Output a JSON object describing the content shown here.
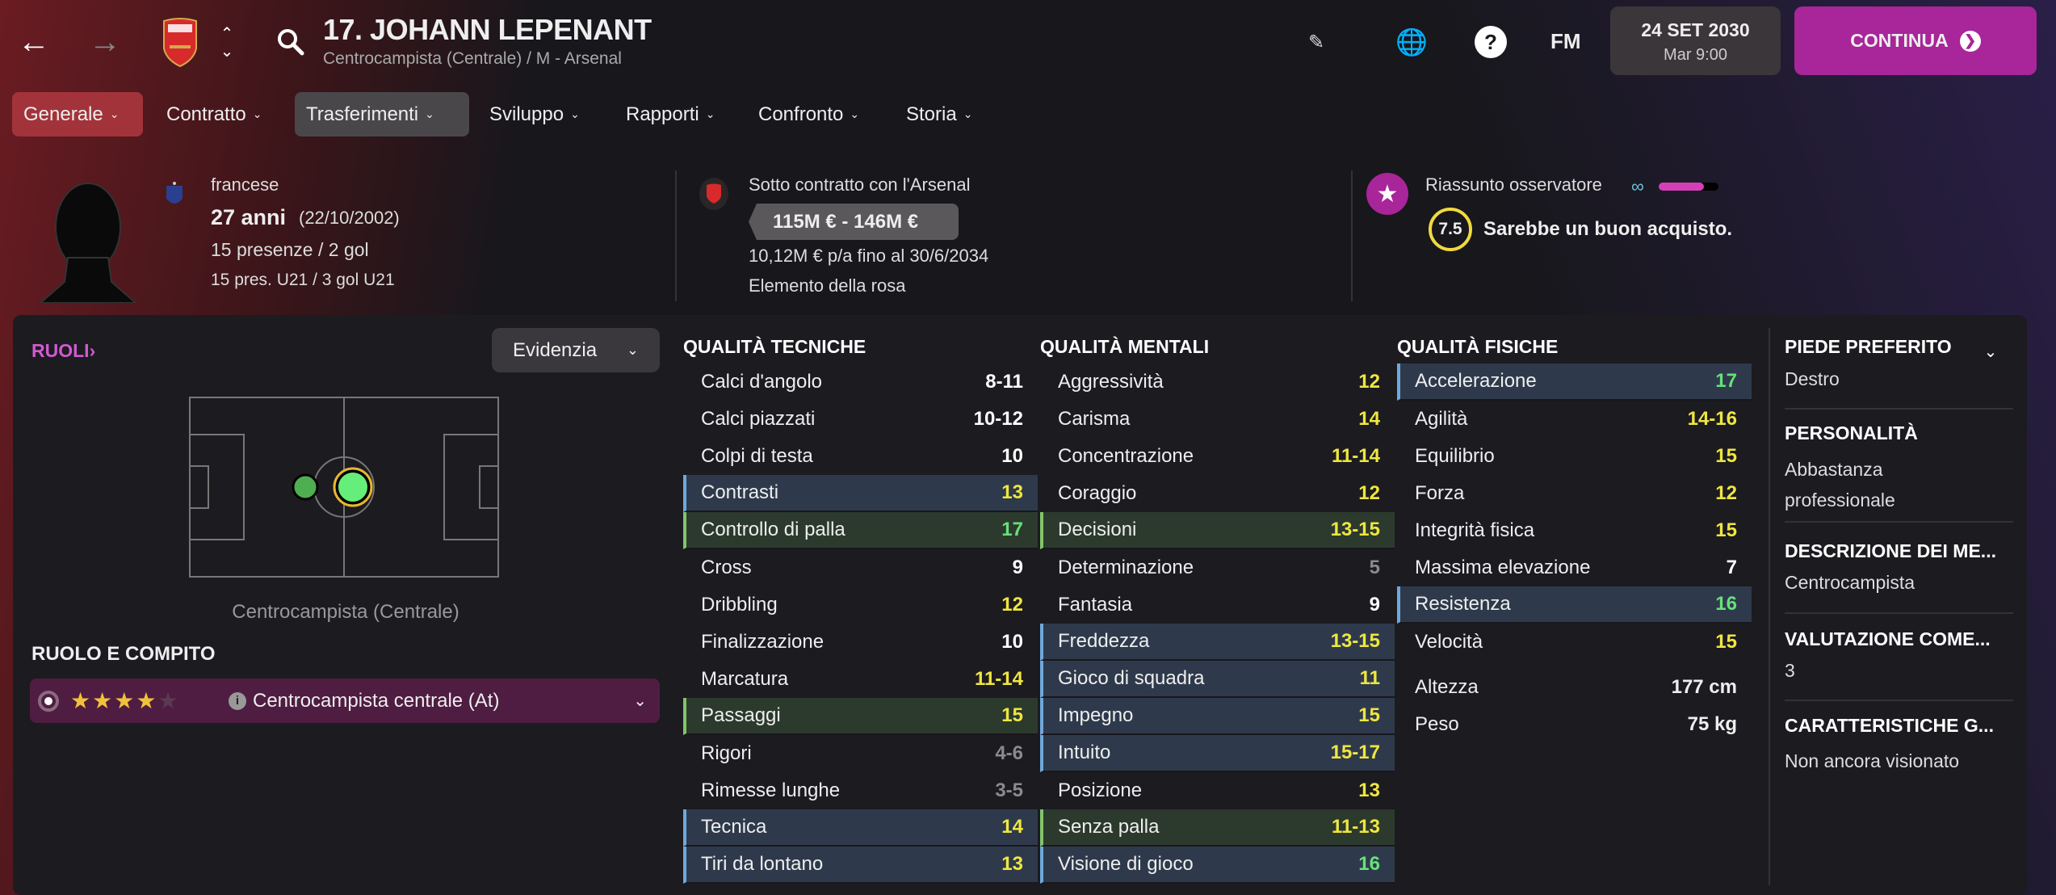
{
  "header": {
    "title": "17. JOHANN LEPENANT",
    "subtitle": "Centrocampista (Centrale) / M - Arsenal",
    "fm_label": "FM",
    "date": "24 SET 2030",
    "time": "Mar 9:00",
    "continue_label": "CONTINUA",
    "club_badge_text": "Arsenal"
  },
  "tabs": [
    {
      "label": "Generale"
    },
    {
      "label": "Contratto"
    },
    {
      "label": "Trasferimenti"
    },
    {
      "label": "Sviluppo"
    },
    {
      "label": "Rapporti"
    },
    {
      "label": "Confronto"
    },
    {
      "label": "Storia"
    }
  ],
  "profile": {
    "nationality": "francese",
    "age": "27 anni",
    "dob": "(22/10/2002)",
    "apps": "15 presenze / 2 gol",
    "u21": "15 pres. U21 / 3 gol U21"
  },
  "contract": {
    "status": "Sotto contratto con l'Arsenal",
    "value": "115M € - 146M €",
    "wage": "10,12M € p/a fino al 30/6/2034",
    "squad_status": "Elemento della rosa"
  },
  "scout": {
    "label": "Riassunto osservatore",
    "knowledge_level": 0.75,
    "rating": "7.5",
    "verdict": "Sarebbe un buon acquisto."
  },
  "roles": {
    "heading": "RUOLI",
    "highlight_select": "Evidenzia",
    "position_label": "Centrocampista (Centrale)",
    "role_heading": "RUOLO E COMPITO",
    "role_stars": 4,
    "role_max_stars": 5,
    "role_name": "Centrocampista centrale (At)"
  },
  "colors": {
    "accent": "#a8259a",
    "yellow": "#efe640",
    "green": "#67e07a",
    "gray": "#8b8b8b",
    "blue_highlight": "#6fa8dc",
    "green_highlight": "#80c56a"
  },
  "technical": {
    "heading": "QUALITÀ TECNICHE",
    "rows": [
      {
        "name": "Calci d'angolo",
        "value": "8-11",
        "color": "white",
        "hl": ""
      },
      {
        "name": "Calci piazzati",
        "value": "10-12",
        "color": "white",
        "hl": ""
      },
      {
        "name": "Colpi di testa",
        "value": "10",
        "color": "white",
        "hl": ""
      },
      {
        "name": "Contrasti",
        "value": "13",
        "color": "yellow",
        "hl": "blue"
      },
      {
        "name": "Controllo di palla",
        "value": "17",
        "color": "green",
        "hl": "green"
      },
      {
        "name": "Cross",
        "value": "9",
        "color": "white",
        "hl": ""
      },
      {
        "name": "Dribbling",
        "value": "12",
        "color": "yellow",
        "hl": ""
      },
      {
        "name": "Finalizzazione",
        "value": "10",
        "color": "white",
        "hl": ""
      },
      {
        "name": "Marcatura",
        "value": "11-14",
        "color": "yellow",
        "hl": ""
      },
      {
        "name": "Passaggi",
        "value": "15",
        "color": "yellow",
        "hl": "green"
      },
      {
        "name": "Rigori",
        "value": "4-6",
        "color": "gray",
        "hl": ""
      },
      {
        "name": "Rimesse lunghe",
        "value": "3-5",
        "color": "gray",
        "hl": ""
      },
      {
        "name": "Tecnica",
        "value": "14",
        "color": "yellow",
        "hl": "blue"
      },
      {
        "name": "Tiri da lontano",
        "value": "13",
        "color": "yellow",
        "hl": "blue"
      }
    ]
  },
  "mental": {
    "heading": "QUALITÀ MENTALI",
    "rows": [
      {
        "name": "Aggressività",
        "value": "12",
        "color": "yellow",
        "hl": ""
      },
      {
        "name": "Carisma",
        "value": "14",
        "color": "yellow",
        "hl": ""
      },
      {
        "name": "Concentrazione",
        "value": "11-14",
        "color": "yellow",
        "hl": ""
      },
      {
        "name": "Coraggio",
        "value": "12",
        "color": "yellow",
        "hl": ""
      },
      {
        "name": "Decisioni",
        "value": "13-15",
        "color": "yellow",
        "hl": "green"
      },
      {
        "name": "Determinazione",
        "value": "5",
        "color": "gray",
        "hl": ""
      },
      {
        "name": "Fantasia",
        "value": "9",
        "color": "white",
        "hl": ""
      },
      {
        "name": "Freddezza",
        "value": "13-15",
        "color": "yellow",
        "hl": "blue"
      },
      {
        "name": "Gioco di squadra",
        "value": "11",
        "color": "yellow",
        "hl": "blue"
      },
      {
        "name": "Impegno",
        "value": "15",
        "color": "yellow",
        "hl": "blue"
      },
      {
        "name": "Intuito",
        "value": "15-17",
        "color": "yellow",
        "hl": "blue"
      },
      {
        "name": "Posizione",
        "value": "13",
        "color": "yellow",
        "hl": ""
      },
      {
        "name": "Senza palla",
        "value": "11-13",
        "color": "yellow",
        "hl": "green"
      },
      {
        "name": "Visione di gioco",
        "value": "16",
        "color": "green",
        "hl": "blue"
      }
    ]
  },
  "physical": {
    "heading": "QUALITÀ FISICHE",
    "rows": [
      {
        "name": "Accelerazione",
        "value": "17",
        "color": "green",
        "hl": "blue"
      },
      {
        "name": "Agilità",
        "value": "14-16",
        "color": "yellow",
        "hl": ""
      },
      {
        "name": "Equilibrio",
        "value": "15",
        "color": "yellow",
        "hl": ""
      },
      {
        "name": "Forza",
        "value": "12",
        "color": "yellow",
        "hl": ""
      },
      {
        "name": "Integrità fisica",
        "value": "15",
        "color": "yellow",
        "hl": ""
      },
      {
        "name": "Massima elevazione",
        "value": "7",
        "color": "white",
        "hl": ""
      },
      {
        "name": "Resistenza",
        "value": "16",
        "color": "green",
        "hl": "blue"
      },
      {
        "name": "Velocità",
        "value": "15",
        "color": "yellow",
        "hl": ""
      }
    ],
    "height_label": "Altezza",
    "height": "177 cm",
    "weight_label": "Peso",
    "weight": "75 kg"
  },
  "side": [
    {
      "heading": "PIEDE PREFERITO",
      "value": "Destro"
    },
    {
      "heading": "PERSONALITÀ",
      "value": "Abbastanza professionale"
    },
    {
      "heading": "DESCRIZIONE DEI ME...",
      "value": "Centrocampista"
    },
    {
      "heading": "VALUTAZIONE COME...",
      "value": "3"
    },
    {
      "heading": "CARATTERISTICHE G...",
      "value": "Non ancora visionato"
    }
  ]
}
